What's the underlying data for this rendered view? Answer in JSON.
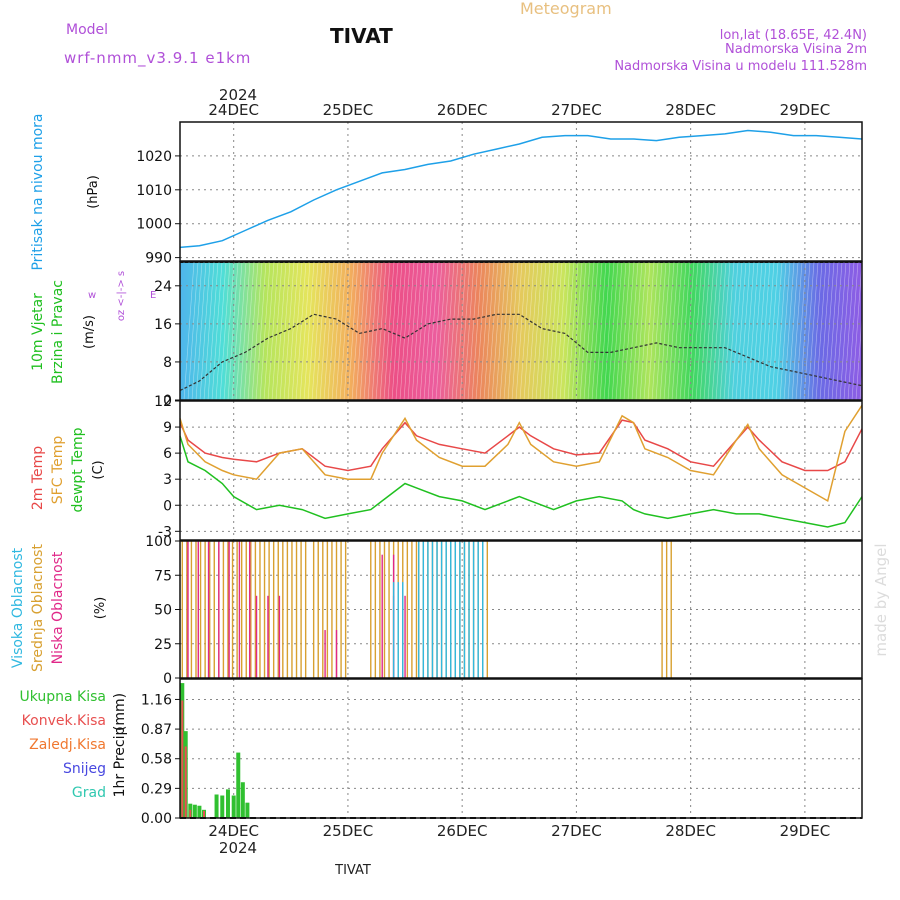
{
  "header": {
    "model_label": "Model",
    "model_name": "wrf-nmm_v3.9.1 e1km",
    "station": "TIVAT",
    "product": "Meteogram",
    "lonlat": "lon,lat (18.65E, 42.4N)",
    "elevation": "Nadmorska Visina 2m",
    "model_elevation": "Nadmorska Visina u modelu 111.528m"
  },
  "footer": {
    "station": "TIVAT",
    "watermark": "made by Angel"
  },
  "time_axis": {
    "year": "2024",
    "day_labels": [
      "24DEC",
      "25DEC",
      "26DEC",
      "27DEC",
      "28DEC",
      "29DEC"
    ],
    "day_positions": [
      1,
      2,
      3,
      4,
      5,
      6
    ],
    "range": [
      0.53,
      6.5
    ]
  },
  "colors": {
    "pressure": "#1ea0e8",
    "temp2m": "#e84848",
    "sfc": "#e0a030",
    "dewpt": "#20c020",
    "high_cloud": "#30b8e0",
    "mid_cloud": "#d8a030",
    "low_cloud": "#e02888",
    "total_precip": "#30c030",
    "conv_precip": "#e85050",
    "purple": "#b050d8",
    "meteogram_title": "#e8c080"
  },
  "chart_data": [
    {
      "type": "line",
      "panel": "pressure",
      "ylabel": [
        "Pritisak na nivou mora",
        "(hPa)"
      ],
      "ylim": [
        989,
        1030
      ],
      "yticks": [
        990,
        1000,
        1010,
        1020
      ],
      "series": [
        {
          "x": [
            0.53,
            0.7,
            0.9,
            1.1,
            1.3,
            1.5,
            1.7,
            1.9,
            2.1,
            2.3,
            2.5,
            2.7,
            2.9,
            3.1,
            3.3,
            3.5,
            3.7,
            3.9,
            4.1,
            4.3,
            4.5,
            4.7,
            4.9,
            5.1,
            5.3,
            5.5,
            5.7,
            5.9,
            6.1,
            6.3,
            6.5
          ],
          "values": [
            993,
            993.5,
            995,
            998,
            1001,
            1003.5,
            1007,
            1010,
            1012.5,
            1015,
            1016,
            1017.5,
            1018.5,
            1020.5,
            1022,
            1023.5,
            1025.5,
            1026,
            1026,
            1025,
            1025,
            1024.5,
            1025.5,
            1026,
            1026.5,
            1027.5,
            1027,
            1026,
            1026,
            1025.5,
            1025
          ]
        }
      ]
    },
    {
      "type": "line",
      "panel": "wind",
      "ylabel": [
        "10m Vjetar",
        "Brzina i Pravac",
        "(m/s)"
      ],
      "direction_key": [
        "z <-|-> s",
        "w",
        "E",
        "o"
      ],
      "ylim": [
        0,
        29
      ],
      "yticks": [
        0,
        8,
        16,
        24
      ],
      "series": [
        {
          "x": [
            0.53,
            0.7,
            0.9,
            1.1,
            1.3,
            1.5,
            1.7,
            1.9,
            2.1,
            2.3,
            2.5,
            2.7,
            2.9,
            3.1,
            3.3,
            3.5,
            3.7,
            3.9,
            4.1,
            4.3,
            4.5,
            4.7,
            4.9,
            5.1,
            5.3,
            5.5,
            5.7,
            5.9,
            6.1,
            6.3,
            6.5
          ],
          "values": [
            2,
            4,
            8,
            10,
            13,
            15,
            18,
            17,
            14,
            15,
            13,
            16,
            17,
            17,
            18,
            18,
            15,
            14,
            10,
            10,
            11,
            12,
            11,
            11,
            11,
            9,
            7,
            6,
            5,
            4,
            3
          ]
        }
      ]
    },
    {
      "type": "line",
      "panel": "temperature",
      "ylabel": [
        "2m Temp",
        "SFC Temp",
        "dewpt Temp",
        "(C)"
      ],
      "ylim": [
        -4,
        12
      ],
      "yticks": [
        -3,
        0,
        3,
        6,
        9,
        12
      ],
      "series": [
        {
          "name": "2m Temp",
          "x": [
            0.53,
            0.6,
            0.75,
            0.9,
            1.0,
            1.2,
            1.4,
            1.6,
            1.8,
            2.0,
            2.2,
            2.3,
            2.5,
            2.6,
            2.8,
            3.0,
            3.2,
            3.4,
            3.5,
            3.6,
            3.8,
            4.0,
            4.2,
            4.4,
            4.5,
            4.6,
            4.8,
            5.0,
            5.2,
            5.4,
            5.5,
            5.6,
            5.8,
            6.0,
            6.2,
            6.35,
            6.5
          ],
          "values": [
            9.5,
            7.5,
            6,
            5.5,
            5.3,
            5,
            6,
            6.5,
            4.5,
            4,
            4.5,
            6.5,
            9.5,
            8,
            7,
            6.5,
            6,
            8,
            9,
            8,
            6.5,
            5.8,
            6,
            9.8,
            9.5,
            7.5,
            6.5,
            5,
            4.5,
            7.5,
            9,
            7.5,
            5,
            4,
            4,
            5,
            8.8
          ]
        },
        {
          "name": "SFC Temp",
          "x": [
            0.53,
            0.6,
            0.75,
            0.9,
            1.0,
            1.2,
            1.4,
            1.6,
            1.8,
            2.0,
            2.2,
            2.3,
            2.5,
            2.6,
            2.8,
            3.0,
            3.2,
            3.4,
            3.5,
            3.6,
            3.8,
            4.0,
            4.2,
            4.4,
            4.5,
            4.6,
            4.8,
            5.0,
            5.2,
            5.4,
            5.5,
            5.6,
            5.8,
            6.0,
            6.2,
            6.35,
            6.5
          ],
          "values": [
            10,
            7,
            5,
            4,
            3.5,
            3,
            6,
            6.5,
            3.5,
            3,
            3,
            6,
            10,
            7.5,
            5.5,
            4.5,
            4.5,
            7,
            9.5,
            7,
            5,
            4.5,
            5,
            10.3,
            9.5,
            6.5,
            5.5,
            4,
            3.5,
            7.5,
            9.3,
            6.5,
            3.5,
            2,
            0.5,
            8.5,
            11.5
          ]
        },
        {
          "name": "dewpt Temp",
          "x": [
            0.53,
            0.6,
            0.75,
            0.9,
            1.0,
            1.2,
            1.4,
            1.6,
            1.8,
            2.0,
            2.2,
            2.3,
            2.5,
            2.6,
            2.8,
            3.0,
            3.2,
            3.4,
            3.5,
            3.6,
            3.8,
            4.0,
            4.2,
            4.4,
            4.5,
            4.6,
            4.8,
            5.0,
            5.2,
            5.4,
            5.5,
            5.6,
            5.8,
            6.0,
            6.2,
            6.35,
            6.5
          ],
          "values": [
            8,
            5,
            4,
            2.5,
            1,
            -0.5,
            0,
            -0.5,
            -1.5,
            -1,
            -0.5,
            0.5,
            2.5,
            2,
            1,
            0.5,
            -0.5,
            0.5,
            1,
            0.5,
            -0.5,
            0.5,
            1,
            0.5,
            -0.5,
            -1,
            -1.5,
            -1,
            -0.5,
            -1,
            -1,
            -1,
            -1.5,
            -2,
            -2.5,
            -2,
            1
          ]
        }
      ]
    },
    {
      "type": "bar",
      "panel": "cloud",
      "ylabel": [
        "Visoka Oblacnost",
        "Srednja Oblacnost",
        "Niska Oblacnost",
        "(%)"
      ],
      "ylim": [
        0,
        100
      ],
      "yticks": [
        0,
        25,
        50,
        75,
        100
      ],
      "series": [
        {
          "name": "Srednja Oblacnost",
          "intervals": [
            [
              0.55,
              1.65,
              0.04,
              100
            ],
            [
              1.7,
              1.98,
              0.04,
              100
            ],
            [
              2.2,
              2.38,
              0.04,
              100
            ],
            [
              2.4,
              2.62,
              0.04,
              100
            ],
            [
              2.62,
              3.25,
              0.04,
              100
            ],
            [
              4.75,
              4.83,
              0.04,
              100
            ]
          ]
        },
        {
          "name": "Niska Oblacnost",
          "intervals": [
            [
              0.6,
              1.2,
              0.09,
              100
            ],
            [
              1.2,
              1.4,
              0.1,
              60
            ],
            [
              1.8,
              1.9,
              0.1,
              35
            ],
            [
              2.3,
              2.4,
              0.1,
              90
            ],
            [
              2.4,
              2.55,
              0.1,
              60
            ]
          ]
        },
        {
          "name": "Visoka Oblacnost",
          "intervals": [
            [
              2.4,
              2.48,
              0.04,
              70
            ],
            [
              2.62,
              3.2,
              0.04,
              100
            ]
          ]
        }
      ]
    },
    {
      "type": "bar",
      "panel": "precip",
      "ylabel": [
        "1hr Precip",
        "(mm)"
      ],
      "ylim": [
        0,
        1.36
      ],
      "yticks": [
        0,
        0.29,
        0.58,
        0.87,
        1.16
      ],
      "legend": [
        "Ukupna Kisa",
        "Konvek.Kisa",
        "Zaledj.Kisa",
        "Snijeg",
        "Grad"
      ],
      "legend_colors": [
        "#30c030",
        "#e85050",
        "#f07830",
        "#4848e0",
        "#30c8b0"
      ],
      "series": [
        {
          "name": "Ukupna Kisa",
          "x": [
            0.55,
            0.58,
            0.62,
            0.66,
            0.7,
            0.74,
            0.85,
            0.9,
            0.95,
            1.0,
            1.04,
            1.08,
            1.12
          ],
          "values": [
            1.32,
            0.85,
            0.14,
            0.13,
            0.12,
            0.08,
            0.23,
            0.22,
            0.28,
            0.22,
            0.64,
            0.35,
            0.15
          ]
        },
        {
          "name": "Konvek.Kisa",
          "x": [
            0.55,
            0.58,
            0.62,
            0.74
          ],
          "values": [
            1.15,
            0.7,
            0.08,
            0.07
          ]
        }
      ]
    }
  ]
}
